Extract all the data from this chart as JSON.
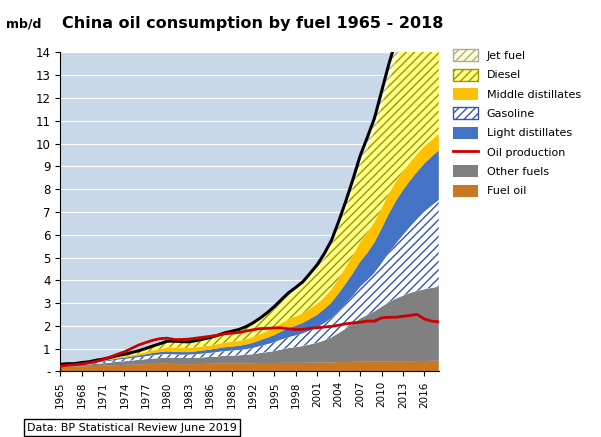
{
  "title": "China oil consumption by fuel 1965 - 2018",
  "ylabel": "mb/d",
  "ylim": [
    0,
    14
  ],
  "yticks": [
    0,
    1,
    2,
    3,
    4,
    5,
    6,
    7,
    8,
    9,
    10,
    11,
    12,
    13,
    14
  ],
  "years": [
    1965,
    1966,
    1967,
    1968,
    1969,
    1970,
    1971,
    1972,
    1973,
    1974,
    1975,
    1976,
    1977,
    1978,
    1979,
    1980,
    1981,
    1982,
    1983,
    1984,
    1985,
    1986,
    1987,
    1988,
    1989,
    1990,
    1991,
    1992,
    1993,
    1994,
    1995,
    1996,
    1997,
    1998,
    1999,
    2000,
    2001,
    2002,
    2003,
    2004,
    2005,
    2006,
    2007,
    2008,
    2009,
    2010,
    2011,
    2012,
    2013,
    2014,
    2015,
    2016,
    2017,
    2018
  ],
  "fuel_oil": [
    0.22,
    0.22,
    0.22,
    0.22,
    0.23,
    0.24,
    0.25,
    0.26,
    0.28,
    0.29,
    0.3,
    0.31,
    0.32,
    0.33,
    0.34,
    0.34,
    0.33,
    0.32,
    0.32,
    0.32,
    0.33,
    0.34,
    0.34,
    0.35,
    0.35,
    0.35,
    0.35,
    0.36,
    0.37,
    0.37,
    0.37,
    0.38,
    0.38,
    0.38,
    0.38,
    0.39,
    0.39,
    0.4,
    0.4,
    0.41,
    0.41,
    0.42,
    0.43,
    0.43,
    0.44,
    0.44,
    0.44,
    0.45,
    0.45,
    0.45,
    0.46,
    0.46,
    0.47,
    0.47
  ],
  "other_fuels": [
    0.05,
    0.06,
    0.06,
    0.07,
    0.08,
    0.1,
    0.11,
    0.13,
    0.15,
    0.16,
    0.18,
    0.2,
    0.22,
    0.24,
    0.25,
    0.27,
    0.27,
    0.27,
    0.27,
    0.28,
    0.29,
    0.3,
    0.32,
    0.34,
    0.35,
    0.36,
    0.38,
    0.4,
    0.44,
    0.48,
    0.53,
    0.59,
    0.65,
    0.69,
    0.74,
    0.8,
    0.87,
    0.97,
    1.1,
    1.28,
    1.48,
    1.68,
    1.9,
    2.05,
    2.2,
    2.4,
    2.6,
    2.75,
    2.88,
    3.0,
    3.08,
    3.15,
    3.2,
    3.25
  ],
  "gasoline": [
    0.02,
    0.03,
    0.03,
    0.04,
    0.04,
    0.05,
    0.06,
    0.07,
    0.08,
    0.09,
    0.1,
    0.11,
    0.12,
    0.14,
    0.15,
    0.15,
    0.14,
    0.14,
    0.14,
    0.15,
    0.16,
    0.17,
    0.19,
    0.2,
    0.21,
    0.22,
    0.24,
    0.27,
    0.3,
    0.34,
    0.38,
    0.43,
    0.47,
    0.51,
    0.55,
    0.61,
    0.67,
    0.75,
    0.84,
    0.95,
    1.08,
    1.22,
    1.38,
    1.52,
    1.68,
    1.9,
    2.15,
    2.4,
    2.65,
    2.9,
    3.15,
    3.4,
    3.6,
    3.8
  ],
  "light_distillates": [
    0.01,
    0.01,
    0.01,
    0.02,
    0.02,
    0.03,
    0.04,
    0.05,
    0.06,
    0.06,
    0.07,
    0.08,
    0.09,
    0.1,
    0.11,
    0.12,
    0.12,
    0.12,
    0.12,
    0.13,
    0.14,
    0.15,
    0.16,
    0.17,
    0.18,
    0.19,
    0.21,
    0.23,
    0.26,
    0.29,
    0.32,
    0.36,
    0.4,
    0.43,
    0.46,
    0.51,
    0.56,
    0.62,
    0.69,
    0.79,
    0.89,
    1.0,
    1.1,
    1.2,
    1.34,
    1.53,
    1.72,
    1.88,
    1.98,
    2.03,
    2.08,
    2.12,
    2.15,
    2.18
  ],
  "middle_distillates": [
    0.01,
    0.01,
    0.01,
    0.02,
    0.02,
    0.03,
    0.03,
    0.04,
    0.05,
    0.06,
    0.07,
    0.08,
    0.1,
    0.12,
    0.14,
    0.18,
    0.2,
    0.19,
    0.18,
    0.18,
    0.18,
    0.18,
    0.19,
    0.2,
    0.21,
    0.22,
    0.23,
    0.25,
    0.27,
    0.3,
    0.33,
    0.36,
    0.39,
    0.41,
    0.43,
    0.46,
    0.49,
    0.53,
    0.58,
    0.65,
    0.72,
    0.79,
    0.86,
    0.89,
    0.9,
    0.9,
    0.88,
    0.85,
    0.82,
    0.8,
    0.78,
    0.76,
    0.74,
    0.72
  ],
  "diesel": [
    0.0,
    0.01,
    0.01,
    0.01,
    0.02,
    0.03,
    0.04,
    0.05,
    0.06,
    0.07,
    0.09,
    0.11,
    0.14,
    0.17,
    0.2,
    0.24,
    0.24,
    0.24,
    0.24,
    0.26,
    0.28,
    0.31,
    0.34,
    0.38,
    0.41,
    0.45,
    0.49,
    0.55,
    0.62,
    0.71,
    0.82,
    0.93,
    1.04,
    1.13,
    1.22,
    1.36,
    1.51,
    1.68,
    1.89,
    2.21,
    2.56,
    2.94,
    3.34,
    3.67,
    3.98,
    4.45,
    4.9,
    5.3,
    5.6,
    5.85,
    6.0,
    6.1,
    6.15,
    6.2
  ],
  "jet_fuel": [
    0.0,
    0.0,
    0.0,
    0.01,
    0.01,
    0.01,
    0.01,
    0.01,
    0.02,
    0.02,
    0.02,
    0.02,
    0.02,
    0.02,
    0.03,
    0.03,
    0.03,
    0.03,
    0.03,
    0.03,
    0.04,
    0.04,
    0.04,
    0.05,
    0.05,
    0.05,
    0.06,
    0.07,
    0.08,
    0.09,
    0.1,
    0.11,
    0.13,
    0.14,
    0.16,
    0.18,
    0.2,
    0.23,
    0.26,
    0.3,
    0.34,
    0.39,
    0.45,
    0.51,
    0.57,
    0.67,
    0.78,
    0.89,
    1.0,
    1.14,
    1.28,
    1.42,
    1.56,
    1.72
  ],
  "oil_production": [
    0.23,
    0.27,
    0.3,
    0.33,
    0.37,
    0.43,
    0.53,
    0.63,
    0.75,
    0.86,
    1.01,
    1.16,
    1.27,
    1.37,
    1.44,
    1.46,
    1.4,
    1.4,
    1.42,
    1.46,
    1.5,
    1.54,
    1.59,
    1.65,
    1.68,
    1.71,
    1.77,
    1.83,
    1.88,
    1.89,
    1.91,
    1.91,
    1.87,
    1.84,
    1.85,
    1.89,
    1.92,
    1.95,
    1.98,
    2.03,
    2.09,
    2.13,
    2.16,
    2.21,
    2.21,
    2.35,
    2.38,
    2.38,
    2.42,
    2.46,
    2.5,
    2.3,
    2.21,
    2.18
  ],
  "colors": {
    "fuel_oil": "#c87820",
    "other_fuels": "#808080",
    "gasoline": "#b8cfe8",
    "light_distillates": "#4472c4",
    "middle_distillates": "#ffc000",
    "diesel": "#ffff00",
    "jet_fuel": "#ffffe0",
    "oil_production": "#cc0000"
  },
  "source_text": "Data: BP Statistical Review June 2019",
  "background_color": "#ffffff",
  "plot_bg": "#c8d8e8"
}
